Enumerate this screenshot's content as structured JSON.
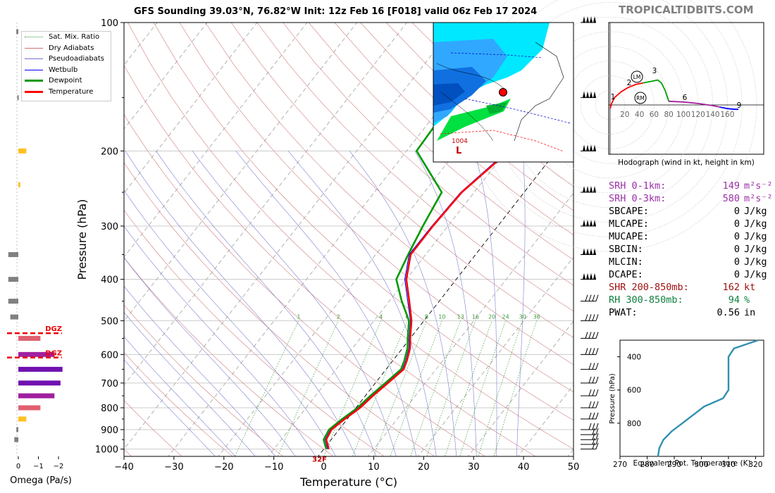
{
  "brand": "TROPICALTIDBITS.COM",
  "title": "GFS Sounding 39.03°N, 76.82°W Init: 12z Feb 16 [F018] valid 06z Feb 17 2024",
  "legend": [
    {
      "label": "Sat. Mix. Ratio",
      "color": "#3a9a3a",
      "style": "dotted"
    },
    {
      "label": "Dry Adiabats",
      "color": "#d07070",
      "style": "solid-thin"
    },
    {
      "label": "Pseudoadiabats",
      "color": "#7070d0",
      "style": "solid-thin"
    },
    {
      "label": "Wetbulb",
      "color": "#0000ff",
      "style": "solid"
    },
    {
      "label": "Dewpoint",
      "color": "#009900",
      "style": "thick"
    },
    {
      "label": "Temperature",
      "color": "#ff0000",
      "style": "thick"
    }
  ],
  "indices": [
    {
      "label": "SRH 0-1km:",
      "value": "149",
      "unit": "m²s⁻²",
      "color": "#9b30a8"
    },
    {
      "label": "SRH 0-3km:",
      "value": "580",
      "unit": "m²s⁻²",
      "color": "#9b30a8"
    },
    {
      "label": "SBCAPE:",
      "value": "0",
      "unit": "J/kg",
      "color": "#000000"
    },
    {
      "label": "MLCAPE:",
      "value": "0",
      "unit": "J/kg",
      "color": "#000000"
    },
    {
      "label": "MUCAPE:",
      "value": "0",
      "unit": "J/kg",
      "color": "#000000"
    },
    {
      "label": "SBCIN:",
      "value": "0",
      "unit": "J/kg",
      "color": "#000000"
    },
    {
      "label": "MLCIN:",
      "value": "0",
      "unit": "J/kg",
      "color": "#000000"
    },
    {
      "label": "DCAPE:",
      "value": "0",
      "unit": "J/kg",
      "color": "#000000"
    },
    {
      "label": "SHR 200-850mb:",
      "value": "162",
      "unit": "kt",
      "color": "#a01010"
    },
    {
      "label": "RH 300-850mb:",
      "value": "94",
      "unit": "%",
      "color": "#108040"
    },
    {
      "label": "PWAT:",
      "value": "0.56",
      "unit": "in",
      "color": "#000000"
    }
  ],
  "chart_data": [
    {
      "type": "line",
      "name": "skew-t",
      "xlabel": "Temperature (°C)",
      "ylabel": "Pressure (hPa)",
      "xlim": [
        -40,
        50
      ],
      "ylim": [
        1040,
        100
      ],
      "yscale": "log",
      "x_ticks": [
        -40,
        -30,
        -20,
        -10,
        0,
        10,
        20,
        30,
        40,
        50
      ],
      "y_ticks": [
        100,
        200,
        300,
        400,
        500,
        600,
        700,
        800,
        900,
        1000
      ],
      "freezing_label": "32F",
      "mix_ratio_labels": [
        "1",
        "2",
        "4",
        "6",
        "8",
        "10",
        "13",
        "16",
        "20",
        "24",
        "30",
        "36"
      ],
      "series": [
        {
          "name": "Temperature",
          "color": "#ff0000",
          "points": [
            [
              1.0,
              1000
            ],
            [
              -1.0,
              950
            ],
            [
              -1.5,
              900
            ],
            [
              -0.5,
              850
            ],
            [
              0.8,
              800
            ],
            [
              1.5,
              750
            ],
            [
              2.5,
              700
            ],
            [
              3.5,
              650
            ],
            [
              2.8,
              620
            ],
            [
              1.5,
              580
            ],
            [
              0.0,
              550
            ],
            [
              -2.5,
              500
            ],
            [
              -6.0,
              450
            ],
            [
              -10.0,
              400
            ],
            [
              -13.0,
              350
            ],
            [
              -13.0,
              300
            ],
            [
              -12.5,
              250
            ],
            [
              -9.5,
              200
            ],
            [
              -4.0,
              160
            ],
            [
              3.0,
              120
            ],
            [
              5.0,
              100
            ]
          ]
        },
        {
          "name": "Wetbulb",
          "color": "#0000ff",
          "points": [
            [
              0.8,
              1000
            ],
            [
              -1.2,
              950
            ],
            [
              -1.7,
              900
            ],
            [
              -0.7,
              850
            ],
            [
              0.6,
              800
            ],
            [
              1.3,
              750
            ],
            [
              2.3,
              700
            ],
            [
              3.3,
              650
            ],
            [
              2.6,
              620
            ],
            [
              1.3,
              580
            ],
            [
              -0.2,
              550
            ],
            [
              -2.7,
              500
            ],
            [
              -6.3,
              450
            ],
            [
              -10.3,
              400
            ],
            [
              -13.3,
              350
            ],
            [
              -13.2,
              300
            ],
            [
              -12.7,
              250
            ],
            [
              -9.8,
              200
            ],
            [
              -3.5,
              160
            ],
            [
              3.5,
              120
            ],
            [
              5.5,
              100
            ]
          ]
        },
        {
          "name": "Dewpoint",
          "color": "#009900",
          "points": [
            [
              0.5,
              1000
            ],
            [
              -1.5,
              950
            ],
            [
              -2.0,
              900
            ],
            [
              -1.0,
              850
            ],
            [
              0.3,
              800
            ],
            [
              1.0,
              750
            ],
            [
              2.0,
              700
            ],
            [
              3.0,
              650
            ],
            [
              2.3,
              620
            ],
            [
              1.0,
              580
            ],
            [
              -0.5,
              550
            ],
            [
              -3.0,
              500
            ],
            [
              -7.5,
              450
            ],
            [
              -12.0,
              400
            ],
            [
              -13.5,
              350
            ],
            [
              -15.0,
              300
            ],
            [
              -16.5,
              250
            ],
            [
              -28.0,
              200
            ],
            [
              -28.5,
              160
            ],
            [
              -25.0,
              120
            ],
            [
              -22.0,
              100
            ]
          ]
        }
      ]
    },
    {
      "type": "bar",
      "name": "omega",
      "xlabel": "Omega (Pa/s)",
      "x_ticks": [
        "0",
        "−1",
        "−2"
      ],
      "xlim": [
        0.2,
        -2.5
      ],
      "dgz_label": "DGZ",
      "dgz_top_hpa": 535,
      "dgz_bottom_hpa": 610,
      "bars": [
        {
          "p": 105,
          "v": 0.1,
          "color": "#808080"
        },
        {
          "p": 150,
          "v": 0.05,
          "color": "#808080"
        },
        {
          "p": 200,
          "v": -0.4,
          "color": "#ffc020"
        },
        {
          "p": 240,
          "v": -0.1,
          "color": "#ffc020"
        },
        {
          "p": 350,
          "v": 0.5,
          "color": "#808080"
        },
        {
          "p": 400,
          "v": 0.5,
          "color": "#808080"
        },
        {
          "p": 450,
          "v": 0.5,
          "color": "#808080"
        },
        {
          "p": 490,
          "v": 0.4,
          "color": "#808080"
        },
        {
          "p": 550,
          "v": -1.1,
          "color": "#e06070"
        },
        {
          "p": 600,
          "v": -1.8,
          "color": "#a020a0"
        },
        {
          "p": 650,
          "v": -2.2,
          "color": "#7010b0"
        },
        {
          "p": 700,
          "v": -2.1,
          "color": "#7010b0"
        },
        {
          "p": 750,
          "v": -1.8,
          "color": "#a020a0"
        },
        {
          "p": 800,
          "v": -1.1,
          "color": "#e06070"
        },
        {
          "p": 850,
          "v": -0.4,
          "color": "#ffc020"
        },
        {
          "p": 900,
          "v": 0.1,
          "color": "#808080"
        },
        {
          "p": 950,
          "v": 0.2,
          "color": "#808080"
        }
      ]
    },
    {
      "type": "line",
      "name": "hodograph",
      "xlabel": "Hodograph (wind in kt, height in km)",
      "rings": [
        "20",
        "40",
        "60",
        "80",
        "100",
        "120",
        "140",
        "160"
      ],
      "height_labels": [
        "1",
        "2",
        "3",
        "6",
        "9"
      ],
      "markers": [
        "LM",
        "RM"
      ],
      "segments": [
        {
          "color": "#ff0000",
          "u": [
            0,
            2,
            6,
            15,
            25,
            35,
            45
          ],
          "v": [
            -5,
            2,
            10,
            18,
            24,
            28,
            30
          ]
        },
        {
          "color": "#00a000",
          "u": [
            45,
            55,
            65,
            70,
            75,
            80
          ],
          "v": [
            30,
            32,
            34,
            30,
            20,
            5
          ]
        },
        {
          "color": "#a020a0",
          "u": [
            80,
            100,
            120,
            140,
            150
          ],
          "v": [
            5,
            4,
            2,
            -1,
            -3
          ]
        },
        {
          "color": "#0000ff",
          "u": [
            150,
            160,
            170,
            175
          ],
          "v": [
            -3,
            -5,
            -6,
            -6
          ]
        }
      ]
    },
    {
      "type": "line",
      "name": "theta-e",
      "xlabel": "Equivalent Pot. Temperature (K)",
      "ylabel": "Pressure (hPa)",
      "xlim": [
        270,
        323
      ],
      "ylim": [
        1000,
        300
      ],
      "x_ticks": [
        270,
        280,
        290,
        300,
        310,
        320
      ],
      "y_ticks": [
        400,
        600,
        800
      ],
      "series": [
        {
          "name": "theta-e",
          "color": "#3090b0",
          "points": [
            [
              284,
              1000
            ],
            [
              284.5,
              950
            ],
            [
              286,
              900
            ],
            [
              289,
              850
            ],
            [
              293,
              800
            ],
            [
              301,
              700
            ],
            [
              308,
              650
            ],
            [
              310,
              600
            ],
            [
              310,
              500
            ],
            [
              310,
              400
            ],
            [
              312,
              350
            ],
            [
              321,
              300
            ]
          ]
        }
      ]
    }
  ]
}
